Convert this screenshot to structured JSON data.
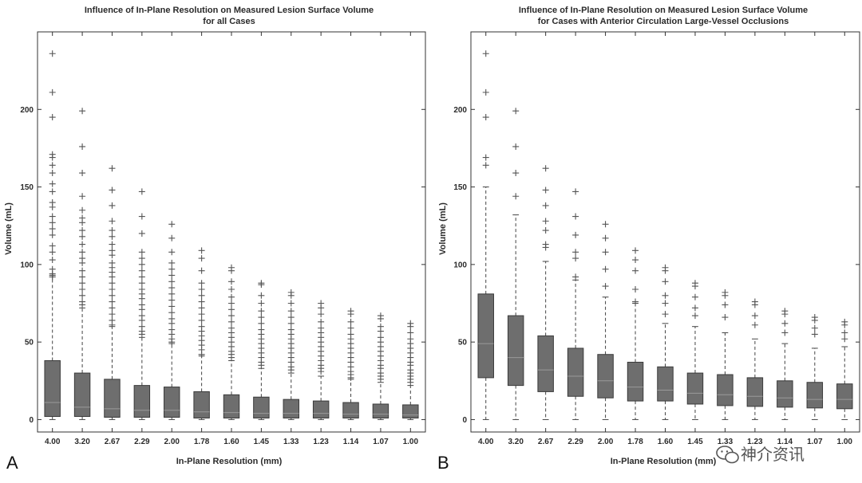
{
  "watermark": {
    "text": "神介资讯",
    "icon": "wechat-icon"
  },
  "chart_data": [
    {
      "type": "box",
      "panel": "A",
      "title": "Influence of In-Plane Resolution on Measured Lesion Surface Volume",
      "subtitle": "for all Cases",
      "xlabel": "In-Plane Resolution (mm)",
      "ylabel": "Volume (mL)",
      "ylim": [
        -8,
        250
      ],
      "yticks": [
        0,
        50,
        100,
        150,
        200
      ],
      "grid": false,
      "categories": [
        "4.00",
        "3.20",
        "2.67",
        "2.29",
        "2.00",
        "1.78",
        "1.60",
        "1.45",
        "1.33",
        "1.23",
        "1.14",
        "1.07",
        "1.00"
      ],
      "boxes": [
        {
          "min": 0,
          "q1": 2,
          "median": 11,
          "q3": 38,
          "whisker_high": 92
        },
        {
          "min": 0,
          "q1": 2,
          "median": 8,
          "q3": 30,
          "whisker_high": 72
        },
        {
          "min": 0,
          "q1": 1.5,
          "median": 7,
          "q3": 26,
          "whisker_high": 60
        },
        {
          "min": 0,
          "q1": 1.5,
          "median": 6,
          "q3": 22,
          "whisker_high": 53
        },
        {
          "min": 0,
          "q1": 1.5,
          "median": 6,
          "q3": 21,
          "whisker_high": 49
        },
        {
          "min": 0,
          "q1": 1,
          "median": 5,
          "q3": 18,
          "whisker_high": 41
        },
        {
          "min": 0,
          "q1": 1,
          "median": 4.5,
          "q3": 16,
          "whisker_high": 38
        },
        {
          "min": 0,
          "q1": 1,
          "median": 4,
          "q3": 14.5,
          "whisker_high": 33
        },
        {
          "min": 0,
          "q1": 1,
          "median": 4,
          "q3": 13,
          "whisker_high": 30
        },
        {
          "min": 0,
          "q1": 1,
          "median": 4,
          "q3": 12,
          "whisker_high": 28
        },
        {
          "min": 0,
          "q1": 1,
          "median": 3.5,
          "q3": 11,
          "whisker_high": 26
        },
        {
          "min": 0,
          "q1": 1,
          "median": 3.5,
          "q3": 10,
          "whisker_high": 24
        },
        {
          "min": 0,
          "q1": 1,
          "median": 3,
          "q3": 9.5,
          "whisker_high": 22
        }
      ],
      "outliers": [
        [
          236,
          211,
          195,
          171,
          169,
          164,
          159,
          152,
          147,
          140,
          137,
          131,
          127,
          123,
          119,
          112,
          108,
          103,
          97,
          94,
          93,
          92
        ],
        [
          199,
          176,
          159,
          144,
          135,
          130,
          127,
          122,
          118,
          113,
          108,
          104,
          101,
          96,
          92,
          88,
          84,
          80,
          76,
          74
        ],
        [
          162,
          148,
          138,
          128,
          122,
          118,
          113,
          109,
          106,
          101,
          98,
          95,
          92,
          88,
          84,
          80,
          76,
          72,
          68,
          64,
          61
        ],
        [
          147,
          131,
          120,
          108,
          104,
          100,
          96,
          92,
          88,
          84,
          81,
          78,
          74,
          71,
          67,
          64,
          60,
          57,
          55
        ],
        [
          126,
          117,
          108,
          101,
          97,
          93,
          89,
          85,
          81,
          77,
          73,
          69,
          65,
          62,
          58,
          55,
          52,
          50
        ],
        [
          109,
          104,
          96,
          88,
          84,
          80,
          76,
          72,
          68,
          64,
          60,
          57,
          54,
          51,
          48,
          45,
          42
        ],
        [
          98,
          96,
          89,
          84,
          79,
          75,
          71,
          67,
          63,
          59,
          56,
          53,
          50,
          47,
          44,
          42,
          40
        ],
        [
          88,
          87,
          80,
          75,
          70,
          66,
          62,
          58,
          55,
          52,
          49,
          46,
          43,
          40,
          37,
          35
        ],
        [
          82,
          80,
          75,
          70,
          66,
          62,
          58,
          55,
          52,
          49,
          46,
          43,
          40,
          37,
          34,
          32
        ],
        [
          75,
          72,
          68,
          63,
          59,
          56,
          53,
          50,
          47,
          44,
          41,
          38,
          35,
          33,
          31
        ],
        [
          70,
          68,
          63,
          59,
          55,
          52,
          49,
          46,
          43,
          40,
          37,
          34,
          31,
          29,
          27
        ],
        [
          67,
          65,
          60,
          57,
          53,
          50,
          47,
          44,
          41,
          38,
          35,
          33,
          30,
          28,
          26
        ],
        [
          62,
          60,
          56,
          52,
          49,
          46,
          43,
          40,
          37,
          35,
          32,
          30,
          28,
          26,
          24
        ]
      ]
    },
    {
      "type": "box",
      "panel": "B",
      "title": "Influence of In-Plane Resolution on Measured Lesion Surface Volume",
      "subtitle": "for Cases with Anterior Circulation Large-Vessel Occlusions",
      "xlabel": "In-Plane Resolution (mm)",
      "ylabel": "Volume (mL)",
      "ylim": [
        -8,
        250
      ],
      "yticks": [
        0,
        50,
        100,
        150,
        200
      ],
      "grid": false,
      "categories": [
        "4.00",
        "3.20",
        "2.67",
        "2.29",
        "2.00",
        "1.78",
        "1.60",
        "1.45",
        "1.33",
        "1.23",
        "1.14",
        "1.07",
        "1.00"
      ],
      "boxes": [
        {
          "min": 0,
          "q1": 27,
          "median": 49,
          "q3": 81,
          "whisker_high": 150
        },
        {
          "min": 0,
          "q1": 22,
          "median": 40,
          "q3": 67,
          "whisker_high": 132
        },
        {
          "min": 0,
          "q1": 18,
          "median": 32,
          "q3": 54,
          "whisker_high": 102
        },
        {
          "min": 0,
          "q1": 15,
          "median": 28,
          "q3": 46,
          "whisker_high": 90
        },
        {
          "min": 0,
          "q1": 14,
          "median": 25,
          "q3": 42,
          "whisker_high": 79
        },
        {
          "min": 0,
          "q1": 12,
          "median": 21,
          "q3": 37,
          "whisker_high": 75
        },
        {
          "min": 0,
          "q1": 12,
          "median": 19,
          "q3": 34,
          "whisker_high": 62
        },
        {
          "min": 0,
          "q1": 10,
          "median": 17,
          "q3": 30,
          "whisker_high": 60
        },
        {
          "min": 0,
          "q1": 9,
          "median": 16,
          "q3": 29,
          "whisker_high": 56
        },
        {
          "min": 0,
          "q1": 8.5,
          "median": 15,
          "q3": 27,
          "whisker_high": 52
        },
        {
          "min": 0,
          "q1": 8,
          "median": 14,
          "q3": 25,
          "whisker_high": 49
        },
        {
          "min": 0,
          "q1": 7.5,
          "median": 13,
          "q3": 24,
          "whisker_high": 46
        },
        {
          "min": 0,
          "q1": 7,
          "median": 13,
          "q3": 23,
          "whisker_high": 47
        }
      ],
      "outliers": [
        [
          236,
          211,
          195,
          169,
          164
        ],
        [
          199,
          176,
          159,
          144
        ],
        [
          162,
          148,
          138,
          128,
          122,
          113,
          111
        ],
        [
          147,
          131,
          119,
          108,
          104,
          92
        ],
        [
          126,
          117,
          108,
          97,
          86
        ],
        [
          109,
          103,
          96,
          84,
          76
        ],
        [
          98,
          96,
          89,
          80,
          75,
          68
        ],
        [
          88,
          86,
          79,
          72,
          67
        ],
        [
          82,
          80,
          74,
          66
        ],
        [
          76,
          74,
          67,
          61
        ],
        [
          70,
          68,
          62,
          56
        ],
        [
          66,
          64,
          59,
          55
        ],
        [
          63,
          61,
          56,
          52
        ]
      ]
    }
  ],
  "panels": {
    "A": {
      "title_line1": "Influence of In-Plane Resolution on Measured Lesion Surface Volume",
      "title_line2": "for all Cases",
      "xlabel": "In-Plane Resolution (mm)",
      "ylabel": "Volume (mL)",
      "letter": "A"
    },
    "B": {
      "title_line1": "Influence of In-Plane Resolution on Measured Lesion Surface Volume",
      "title_line2": "for Cases with Anterior Circulation Large-Vessel Occlusions",
      "xlabel": "In-Plane Resolution (mm)",
      "ylabel": "Volume (mL)",
      "letter": "B"
    }
  },
  "colors": {
    "box_fill": "#6e6e6e",
    "box_edge": "#3a3a3a",
    "median": "#9a9a9a",
    "whisker": "#444444",
    "outlier": "#555555",
    "axes": "#333333"
  }
}
